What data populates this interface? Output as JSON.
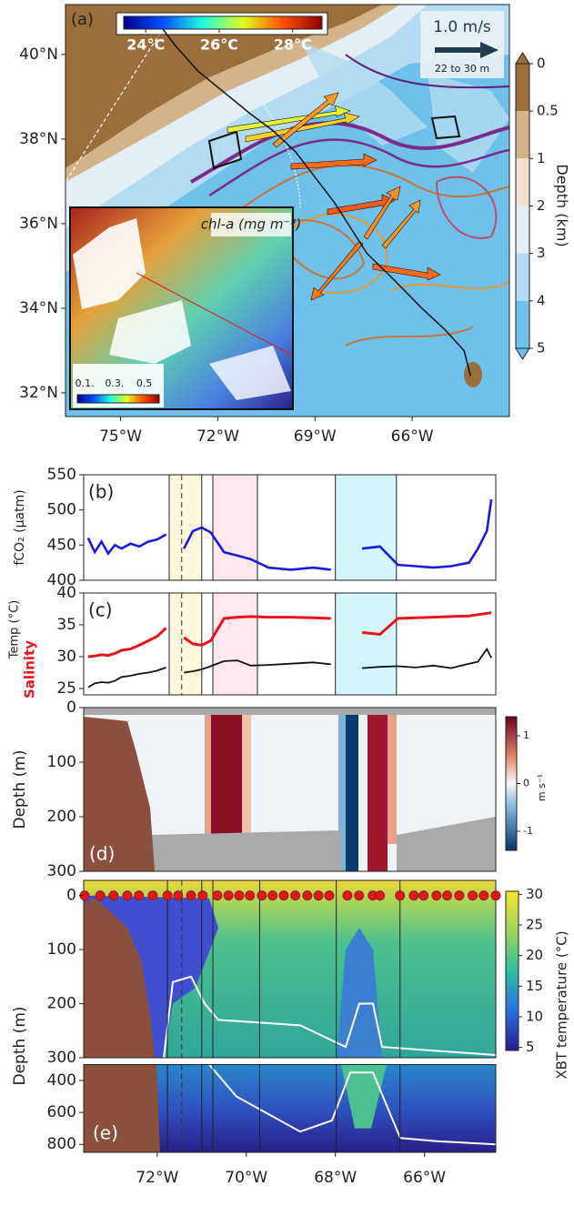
{
  "chart_data": [
    {
      "type": "map",
      "panel_label": "(a)",
      "xlim": [
        -76.7,
        -63.0
      ],
      "ylim": [
        31.44,
        41.18
      ],
      "xticks": [
        {
          "value": -75,
          "label": "75°W"
        },
        {
          "value": -72,
          "label": "72°W"
        },
        {
          "value": -69,
          "label": "69°W"
        },
        {
          "value": -66,
          "label": "66°W"
        }
      ],
      "yticks": [
        {
          "value": 40,
          "label": "40°N"
        },
        {
          "value": 38,
          "label": "38°N"
        },
        {
          "value": 36,
          "label": "36°N"
        },
        {
          "value": 34,
          "label": "34°N"
        },
        {
          "value": 32,
          "label": "32°N"
        }
      ],
      "track": {
        "x": [
          -73.95,
          -73.3,
          -72.6,
          -71.8,
          -71.0,
          -70.3,
          -69.6,
          -69.0,
          -68.4,
          -67.9,
          -67.4,
          -66.6,
          -65.7,
          -65.0,
          -64.4,
          -64.2
        ],
        "y": [
          40.86,
          40.2,
          39.6,
          39.1,
          38.6,
          38.2,
          37.7,
          37.1,
          36.5,
          35.9,
          35.3,
          34.7,
          34.0,
          33.5,
          33.0,
          32.4
        ]
      },
      "track_color": "#111111",
      "depth_colorbar": {
        "label": "Depth (km)",
        "levels": [
          0,
          0.5,
          1,
          2,
          3,
          4,
          5
        ],
        "colors": [
          "#9a6f3c",
          "#d3b48a",
          "#f1e2cf",
          "#e3eef5",
          "#b3dbf1",
          "#6fc0ea"
        ]
      },
      "temp_colorbar": {
        "lim": [
          23.4,
          28.8
        ],
        "ticks": [
          {
            "value": 24,
            "label": "24°C"
          },
          {
            "value": 26,
            "label": "26°C"
          },
          {
            "value": 28,
            "label": "28°C"
          }
        ]
      },
      "arrow_scale": {
        "label": "1.0 m/s",
        "depth_label": "22 to 30 m"
      },
      "inset": {
        "title": "chl-a (mg m⁻³)",
        "lim": [
          0.05,
          0.6
        ],
        "ticks": [
          {
            "value": 0.1,
            "label": "0.1."
          },
          {
            "value": 0.3,
            "label": "0.3."
          },
          {
            "value": 0.5,
            "label": "0.5"
          }
        ]
      }
    },
    {
      "type": "line",
      "panel_label": "(b)",
      "ylabel": "fCO₂ (μatm)",
      "xlim": [
        -73.65,
        -64.4
      ],
      "ylim": [
        400,
        550
      ],
      "yticks": [
        400,
        450,
        500,
        550
      ],
      "x": [
        -73.55,
        -73.4,
        -73.25,
        -73.1,
        -72.95,
        -72.8,
        -72.6,
        -72.4,
        -72.2,
        -72.0,
        -71.8,
        -71.6,
        -71.4,
        -71.2,
        -71.0,
        -70.8,
        -70.5,
        -70.2,
        -69.9,
        -69.5,
        -69.0,
        -68.5,
        -68.1,
        -67.8,
        -67.4,
        -67.0,
        -66.6,
        -66.2,
        -65.8,
        -65.4,
        -65.0,
        -64.8,
        -64.6,
        -64.5
      ],
      "series": [
        {
          "color": "#1a1adb",
          "values": [
            460,
            440,
            455,
            438,
            450,
            445,
            452,
            448,
            455,
            458,
            465,
            null,
            445,
            470,
            475,
            468,
            440,
            435,
            430,
            418,
            415,
            418,
            415,
            null,
            445,
            448,
            422,
            420,
            418,
            420,
            425,
            445,
            470,
            515
          ]
        }
      ],
      "bands": [
        {
          "from": -71.73,
          "to": -71.0,
          "color": "#fdf8dc"
        },
        {
          "from": -70.75,
          "to": -69.75,
          "color": "#fbe9ee"
        },
        {
          "from": -68.0,
          "to": -66.63,
          "color": "#d3f6fb"
        }
      ],
      "dashed_x": -71.45
    },
    {
      "type": "line",
      "panel_label": "(c)",
      "ylabels": [
        {
          "text": "Temp (°C)",
          "color": "#222222"
        },
        {
          "text": "Salinity",
          "color": "#e8141b"
        }
      ],
      "xlim": [
        -73.65,
        -64.4
      ],
      "ylim": [
        24,
        40
      ],
      "yticks": [
        25,
        30,
        35,
        40
      ],
      "x": [
        -73.55,
        -73.4,
        -73.25,
        -73.1,
        -72.95,
        -72.8,
        -72.6,
        -72.4,
        -72.2,
        -72.0,
        -71.8,
        -71.6,
        -71.4,
        -71.2,
        -71.0,
        -70.8,
        -70.5,
        -70.2,
        -69.9,
        -69.5,
        -69.0,
        -68.5,
        -68.1,
        -67.8,
        -67.4,
        -67.0,
        -66.6,
        -66.2,
        -65.8,
        -65.4,
        -65.0,
        -64.8,
        -64.6,
        -64.5
      ],
      "series": [
        {
          "color": "#e8141b",
          "values": [
            30,
            30.1,
            30.3,
            30.2,
            30.5,
            31,
            31.2,
            31.8,
            32.5,
            33.2,
            34.5,
            null,
            33,
            32,
            31.8,
            32.5,
            36,
            36.2,
            36.3,
            36.2,
            36.2,
            36.1,
            36.0,
            null,
            33.8,
            33.5,
            36,
            36.1,
            36.2,
            36.3,
            36.4,
            36.6,
            36.8,
            36.9
          ]
        },
        {
          "color": "#111111",
          "values": [
            25.2,
            25.8,
            26,
            25.9,
            26.2,
            26.8,
            27,
            27.3,
            27.5,
            27.8,
            28.3,
            null,
            27.5,
            27.7,
            28,
            28.5,
            29.3,
            29.4,
            28.6,
            28.7,
            28.9,
            29.1,
            28.8,
            null,
            28.2,
            28.4,
            28.5,
            28.3,
            28.6,
            28.2,
            28.9,
            29.2,
            31.2,
            29.8
          ]
        }
      ],
      "bands": [
        {
          "from": -71.73,
          "to": -71.0,
          "color": "#fdf8dc"
        },
        {
          "from": -70.75,
          "to": -69.75,
          "color": "#fbe9ee"
        },
        {
          "from": -68.0,
          "to": -66.63,
          "color": "#d3f6fb"
        }
      ],
      "dashed_x": -71.45
    },
    {
      "type": "section",
      "panel_label": "(d)",
      "ylabel": "Depth (m)",
      "xlim": [
        -73.65,
        -64.4
      ],
      "ylim": [
        0,
        300
      ],
      "yticks": [
        0,
        100,
        200,
        300
      ],
      "colorbar": {
        "label": "m s⁻¹",
        "lim": [
          -1.4,
          1.4
        ],
        "ticks": [
          1,
          0,
          -1
        ]
      }
    },
    {
      "type": "xbt",
      "panel_label": "(e)",
      "ylabel": "Depth (m)",
      "xlim": [
        -73.65,
        -64.4
      ],
      "ylim": [
        -28,
        300
      ],
      "yticks": [
        0,
        100,
        200,
        300
      ],
      "ylim2": [
        300,
        850
      ],
      "yticks2": [
        400,
        600,
        800
      ],
      "xticks": [
        {
          "value": -72,
          "label": "72°W"
        },
        {
          "value": -70,
          "label": "70°W"
        },
        {
          "value": -68,
          "label": "68°W"
        },
        {
          "value": -66,
          "label": "66°W"
        }
      ],
      "vlines": [
        -71.77,
        -71.0,
        -70.75,
        -69.7,
        -67.98,
        -66.55
      ],
      "dashed_x": -71.45,
      "stations": [
        -73.63,
        -73.28,
        -72.98,
        -72.67,
        -72.41,
        -72.1,
        -71.77,
        -71.53,
        -71.24,
        -70.98,
        -70.65,
        -70.4,
        -70.16,
        -69.92,
        -69.65,
        -69.41,
        -69.16,
        -68.9,
        -68.63,
        -68.38,
        -68.14,
        -67.73,
        -67.47,
        -67.16,
        -67.0,
        -66.55,
        -66.24,
        -66.02,
        -65.73,
        -65.49,
        -65.22,
        -64.92,
        -64.67,
        -64.4
      ],
      "station_color": "#e8141b",
      "colorbar": {
        "label": "XBT temperature (°C)",
        "lim": [
          4.5,
          30.5
        ],
        "ticks": [
          5,
          10,
          15,
          20,
          25,
          30
        ]
      }
    }
  ]
}
